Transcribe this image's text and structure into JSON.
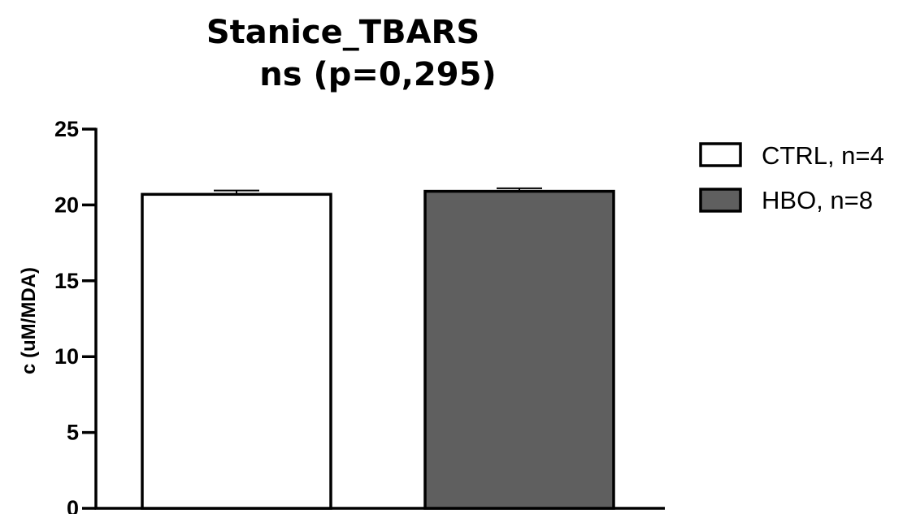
{
  "chart_data": {
    "type": "bar",
    "title": "Stanice_TBARS",
    "subtitle": "ns (p=0,295)",
    "ylabel": "c (uM/MDA)",
    "xlabel": "",
    "ylim": [
      0,
      25
    ],
    "yticks": [
      "0",
      "5",
      "10",
      "15",
      "20",
      "25"
    ],
    "categories": [
      "CTRL, n=4",
      "HBO, n=8"
    ],
    "values": [
      20.7,
      20.9
    ],
    "errors": [
      0.25,
      0.2
    ],
    "colors": [
      "#ffffff",
      "#5f5f5f"
    ],
    "legend_position": "top-right",
    "grid": false
  }
}
